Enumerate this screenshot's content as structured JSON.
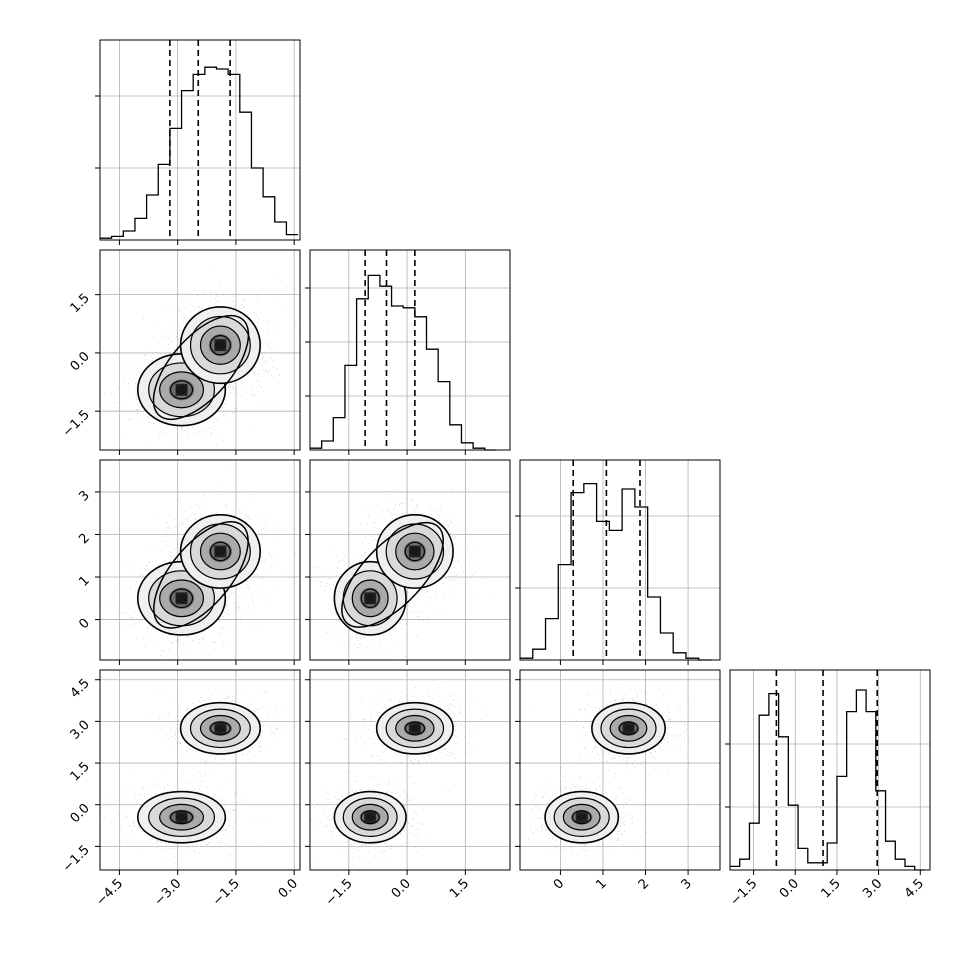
{
  "chart_data": {
    "type": "corner",
    "n_params": 4,
    "colors": {
      "hist": "#000000",
      "contour": "#000000",
      "quantile": "#000000",
      "grid": "#b0b0b0",
      "points": "#808080",
      "density_light": "#ececec",
      "density_dark": "#1a1a1a"
    },
    "grid": true,
    "axes": [
      {
        "index": 0,
        "range": [
          -5.0,
          0.15
        ],
        "ticks": [
          -4.5,
          -3.0,
          -1.5,
          0.0
        ],
        "tick_labels": [
          "−4.5",
          "−3.0",
          "−1.5",
          "0.0"
        ]
      },
      {
        "index": 1,
        "range": [
          -2.5,
          2.65
        ],
        "ticks": [
          -1.5,
          0.0,
          1.5
        ],
        "tick_labels": [
          "−1.5",
          "0.0",
          "1.5"
        ]
      },
      {
        "index": 2,
        "range": [
          -0.95,
          3.75
        ],
        "ticks": [
          0,
          1,
          2,
          3
        ],
        "tick_labels": [
          "0",
          "1",
          "2",
          "3"
        ]
      },
      {
        "index": 3,
        "range": [
          -2.35,
          4.85
        ],
        "ticks": [
          -1.5,
          0.0,
          1.5,
          3.0,
          4.5
        ],
        "tick_labels": [
          "−1.5",
          "0.0",
          "1.5",
          "3.0",
          "4.5"
        ]
      }
    ],
    "histograms": [
      {
        "param": 0,
        "bin_edges": [
          -5.0,
          -4.7,
          -4.4,
          -4.1,
          -3.8,
          -3.5,
          -3.2,
          -2.9,
          -2.6,
          -2.3,
          -2.0,
          -1.7,
          -1.4,
          -1.1,
          -0.8,
          -0.5,
          -0.2,
          0.1
        ],
        "counts": [
          0.01,
          0.02,
          0.05,
          0.12,
          0.25,
          0.42,
          0.62,
          0.83,
          0.92,
          0.96,
          0.95,
          0.92,
          0.71,
          0.4,
          0.24,
          0.1,
          0.03
        ],
        "quantiles": [
          -3.2,
          -2.47,
          -1.65
        ],
        "yticks": [
          0.4,
          0.8
        ]
      },
      {
        "param": 1,
        "bin_edges": [
          -2.5,
          -2.2,
          -1.9,
          -1.6,
          -1.3,
          -1.0,
          -0.7,
          -0.4,
          -0.1,
          0.2,
          0.5,
          0.8,
          1.1,
          1.4,
          1.7,
          2.0,
          2.3
        ],
        "counts": [
          0.01,
          0.05,
          0.18,
          0.47,
          0.84,
          0.97,
          0.91,
          0.8,
          0.79,
          0.74,
          0.56,
          0.38,
          0.14,
          0.04,
          0.01,
          0.0
        ],
        "quantiles": [
          -1.08,
          -0.53,
          0.2
        ],
        "yticks": [
          0.3,
          0.6,
          0.9
        ]
      },
      {
        "param": 2,
        "bin_edges": [
          -0.95,
          -0.65,
          -0.35,
          -0.05,
          0.25,
          0.55,
          0.85,
          1.15,
          1.45,
          1.75,
          2.05,
          2.35,
          2.65,
          2.95,
          3.25,
          3.55
        ],
        "counts": [
          0.01,
          0.06,
          0.23,
          0.53,
          0.93,
          0.98,
          0.77,
          0.72,
          0.95,
          0.85,
          0.35,
          0.15,
          0.04,
          0.01,
          0.0
        ],
        "quantiles": [
          0.3,
          1.08,
          1.87
        ],
        "yticks": [
          0.4,
          0.8
        ]
      },
      {
        "param": 3,
        "bin_edges": [
          -2.35,
          -2.0,
          -1.65,
          -1.3,
          -0.95,
          -0.6,
          -0.25,
          0.1,
          0.45,
          0.8,
          1.15,
          1.5,
          1.85,
          2.2,
          2.55,
          2.9,
          3.25,
          3.6,
          3.95,
          4.3,
          4.65
        ],
        "counts": [
          0.02,
          0.06,
          0.26,
          0.86,
          0.98,
          0.74,
          0.36,
          0.12,
          0.04,
          0.04,
          0.15,
          0.52,
          0.88,
          1.0,
          0.88,
          0.44,
          0.16,
          0.06,
          0.02,
          0.0
        ],
        "quantiles": [
          -0.68,
          1.0,
          2.95
        ],
        "yticks": [
          0.35,
          0.7
        ]
      }
    ],
    "modes": [
      {
        "center": [
          -2.9,
          -0.95,
          0.5,
          -0.45
        ]
      },
      {
        "center": [
          -1.9,
          0.2,
          1.6,
          2.75
        ]
      }
    ],
    "contour_levels_sigma": [
      0.5,
      1.0,
      1.5,
      2.0
    ]
  }
}
